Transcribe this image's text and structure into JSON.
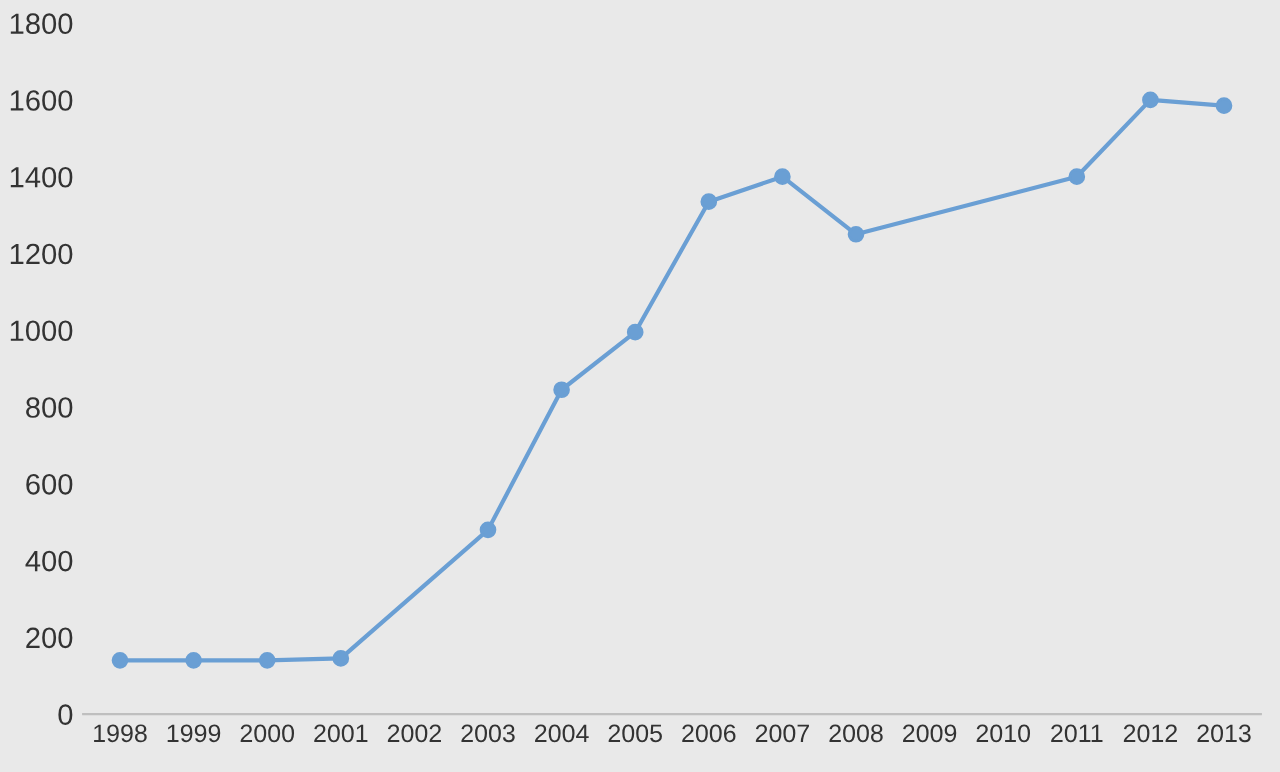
{
  "chart_data": {
    "type": "line",
    "x": [
      1998,
      1999,
      2000,
      2001,
      2003,
      2004,
      2005,
      2006,
      2007,
      2008,
      2011,
      2012,
      2013
    ],
    "series": [
      {
        "color": "#6a9fd4",
        "values": [
          140,
          140,
          140,
          145,
          480,
          845,
          995,
          1335,
          1400,
          1250,
          1400,
          1600,
          1585
        ]
      }
    ],
    "xlim": [
      1997.5,
      2013.5
    ],
    "xticks": [
      1998,
      1999,
      2000,
      2001,
      2002,
      2003,
      2004,
      2005,
      2006,
      2007,
      2008,
      2009,
      2010,
      2011,
      2012,
      2013
    ],
    "ylim": [
      0,
      1800
    ],
    "yticks": [
      0,
      200,
      400,
      600,
      800,
      1000,
      1200,
      1400,
      1600,
      1800
    ],
    "grid": false,
    "marker": "circle",
    "line_style": "solid"
  }
}
